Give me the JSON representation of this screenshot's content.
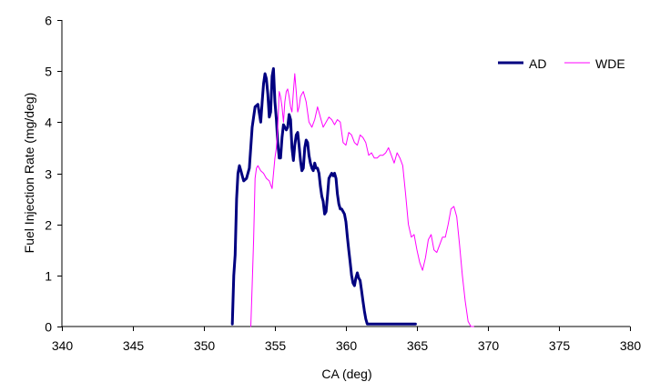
{
  "chart_data": {
    "type": "line",
    "xlabel": "CA (deg)",
    "ylabel": "Fuel Injection Rate (mg/deg)",
    "xlim": [
      340,
      380
    ],
    "ylim": [
      0,
      6
    ],
    "xticks": [
      "340",
      "345",
      "350",
      "355",
      "360",
      "365",
      "370",
      "375",
      "380"
    ],
    "yticks": [
      "0",
      "1",
      "2",
      "3",
      "4",
      "5",
      "6"
    ],
    "grid": false,
    "legend_position": "top-right",
    "series": [
      {
        "name": "AD",
        "color": "#000080",
        "x": [
          352.0,
          352.1,
          352.2,
          352.3,
          352.4,
          352.5,
          352.6,
          352.7,
          352.8,
          353.0,
          353.2,
          353.4,
          353.6,
          353.8,
          354.0,
          354.1,
          354.2,
          354.3,
          354.4,
          354.5,
          354.6,
          354.7,
          354.8,
          354.9,
          355.0,
          355.1,
          355.2,
          355.3,
          355.4,
          355.5,
          355.6,
          355.7,
          355.8,
          355.9,
          356.0,
          356.1,
          356.2,
          356.3,
          356.4,
          356.5,
          356.6,
          356.7,
          356.8,
          356.9,
          357.0,
          357.1,
          357.2,
          357.3,
          357.4,
          357.5,
          357.6,
          357.7,
          357.8,
          357.9,
          358.0,
          358.1,
          358.2,
          358.3,
          358.4,
          358.5,
          358.6,
          358.7,
          358.8,
          358.9,
          359.0,
          359.1,
          359.2,
          359.3,
          359.4,
          359.5,
          359.6,
          359.7,
          359.8,
          359.9,
          360.0,
          360.1,
          360.2,
          360.3,
          360.4,
          360.5,
          360.6,
          360.7,
          360.8,
          360.9,
          361.0,
          361.1,
          361.2,
          361.3,
          361.4,
          361.5,
          361.6,
          361.7,
          361.8,
          361.9,
          362.0,
          362.1,
          362.2,
          362.3,
          362.4,
          362.5,
          362.6,
          362.7,
          362.8,
          362.9,
          363.0,
          363.1,
          363.2,
          363.3,
          363.4,
          363.5,
          363.6,
          363.7,
          363.8,
          363.9,
          364.0,
          364.1,
          364.2,
          364.3,
          364.4,
          364.5,
          364.6,
          364.7,
          364.8,
          364.9
        ],
        "y": [
          0.05,
          1.0,
          1.4,
          2.5,
          3.0,
          3.15,
          3.05,
          2.95,
          2.85,
          2.9,
          3.1,
          3.9,
          4.3,
          4.35,
          4.0,
          4.4,
          4.75,
          4.95,
          4.85,
          4.55,
          4.1,
          4.2,
          4.9,
          5.05,
          4.4,
          4.05,
          3.6,
          3.3,
          3.3,
          3.7,
          3.95,
          3.9,
          3.85,
          3.9,
          4.15,
          4.05,
          3.5,
          3.25,
          3.55,
          3.75,
          3.8,
          3.55,
          3.25,
          3.05,
          3.1,
          3.5,
          3.65,
          3.6,
          3.35,
          3.2,
          3.1,
          3.05,
          3.2,
          3.1,
          3.1,
          3.0,
          2.75,
          2.55,
          2.45,
          2.2,
          2.25,
          2.55,
          2.9,
          2.95,
          3.0,
          2.95,
          3.0,
          2.9,
          2.6,
          2.4,
          2.3,
          2.3,
          2.25,
          2.2,
          2.05,
          1.75,
          1.5,
          1.25,
          1.0,
          0.85,
          0.8,
          0.95,
          1.05,
          0.95,
          0.9,
          0.7,
          0.5,
          0.3,
          0.15,
          0.05,
          0.05,
          0.05,
          0.05,
          0.05,
          0.05,
          0.05,
          0.05,
          0.05,
          0.05,
          0.05,
          0.05,
          0.05,
          0.05,
          0.05,
          0.05,
          0.05,
          0.05,
          0.05,
          0.05,
          0.05,
          0.05,
          0.05,
          0.05,
          0.05,
          0.05,
          0.05,
          0.05,
          0.05,
          0.05,
          0.05,
          0.05,
          0.05,
          0.05,
          0.05
        ]
      },
      {
        "name": "WDE",
        "color": "#ff00ff",
        "x": [
          353.3,
          353.4,
          353.5,
          353.6,
          353.7,
          353.8,
          353.9,
          354.0,
          354.2,
          354.4,
          354.6,
          354.8,
          355.0,
          355.1,
          355.2,
          355.3,
          355.4,
          355.5,
          355.6,
          355.7,
          355.8,
          355.9,
          356.0,
          356.1,
          356.2,
          356.3,
          356.4,
          356.5,
          356.6,
          356.7,
          356.8,
          356.9,
          357.0,
          357.2,
          357.4,
          357.6,
          357.8,
          358.0,
          358.2,
          358.4,
          358.6,
          358.8,
          359.0,
          359.2,
          359.4,
          359.6,
          359.8,
          360.0,
          360.2,
          360.4,
          360.6,
          360.8,
          361.0,
          361.2,
          361.4,
          361.6,
          361.8,
          362.0,
          362.2,
          362.4,
          362.6,
          362.8,
          363.0,
          363.2,
          363.4,
          363.6,
          363.8,
          364.0,
          364.2,
          364.4,
          364.6,
          364.8,
          365.0,
          365.2,
          365.4,
          365.6,
          365.8,
          366.0,
          366.2,
          366.4,
          366.6,
          366.8,
          367.0,
          367.2,
          367.4,
          367.6,
          367.8,
          368.0,
          368.2,
          368.4,
          368.6,
          368.8,
          369.0
        ],
        "y": [
          0.0,
          0.8,
          1.7,
          2.9,
          3.1,
          3.15,
          3.1,
          3.05,
          3.0,
          2.9,
          2.85,
          2.7,
          3.3,
          3.5,
          3.9,
          4.6,
          4.5,
          4.3,
          4.0,
          4.4,
          4.6,
          4.65,
          4.5,
          4.3,
          4.2,
          4.6,
          4.95,
          4.6,
          4.2,
          4.3,
          4.5,
          4.55,
          4.6,
          4.4,
          4.0,
          3.9,
          4.05,
          4.3,
          4.1,
          3.9,
          4.0,
          4.1,
          4.05,
          3.95,
          4.05,
          4.0,
          3.6,
          3.55,
          3.8,
          3.75,
          3.6,
          3.55,
          3.75,
          3.7,
          3.6,
          3.35,
          3.4,
          3.3,
          3.3,
          3.35,
          3.35,
          3.4,
          3.5,
          3.35,
          3.2,
          3.4,
          3.3,
          3.15,
          2.6,
          2.0,
          1.75,
          1.8,
          1.5,
          1.25,
          1.1,
          1.35,
          1.7,
          1.8,
          1.5,
          1.45,
          1.6,
          1.75,
          1.75,
          2.0,
          2.3,
          2.35,
          2.15,
          1.6,
          1.0,
          0.5,
          0.1,
          0.0,
          0.0
        ]
      }
    ]
  }
}
